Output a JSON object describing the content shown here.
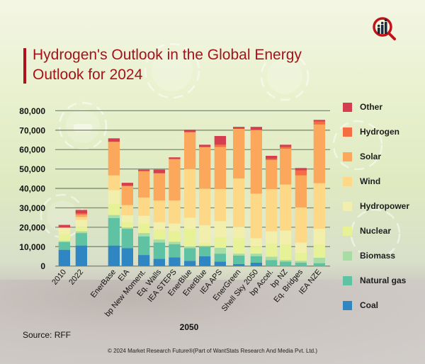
{
  "title": "Hydrogen's Outlook in the Global Energy Outlook for 2024",
  "source": "Source: RFF",
  "copyright": "© 2024 Market Research Future®(Part of WantStats Research And Media Pvt. Ltd.)",
  "logo_icon": "magnifier-chart-icon",
  "chart_data": {
    "type": "bar",
    "stacked": true,
    "title": "Hydrogen's Outlook in the Global Energy Outlook for 2024",
    "xlabel": "2050",
    "ylabel": "",
    "ylim": [
      0,
      80000
    ],
    "yticks": [
      0,
      10000,
      20000,
      30000,
      40000,
      50000,
      60000,
      70000,
      80000
    ],
    "ytick_labels": [
      "0",
      "10,000",
      "20,000",
      "30,000",
      "40,000",
      "50,000",
      "60,000",
      "70,000",
      "80,000"
    ],
    "grid": true,
    "legend_position": "right",
    "categories": [
      "2010",
      "2022",
      "EnerBase",
      "EIA",
      "bp New Moment.",
      "Eq. Walls",
      "IEA STEPS",
      "EnerBlue",
      "EnerBlue",
      "IEA APS",
      "EnerGreen",
      "Shell Sky 2050",
      "bp Accel.",
      "bp NZ",
      "Eq. Bridges",
      "IEA NZE"
    ],
    "category_group_gap_after": [
      1,
      9
    ],
    "series": [
      {
        "name": "Coal",
        "color": "#2f86c3",
        "values": [
          8400,
          10600,
          10600,
          9200,
          5700,
          3700,
          4500,
          2700,
          5100,
          2300,
          1100,
          1800,
          0,
          0,
          0,
          0
        ]
      },
      {
        "name": "Natural gas",
        "color": "#5fc2a2",
        "values": [
          4000,
          6400,
          14100,
          10000,
          9600,
          8400,
          6700,
          6500,
          4900,
          4100,
          4300,
          3300,
          3100,
          2300,
          1800,
          1500
        ]
      },
      {
        "name": "Biomass",
        "color": "#a7dca4",
        "values": [
          500,
          900,
          1600,
          600,
          1700,
          1600,
          1300,
          800,
          500,
          3000,
          1000,
          1300,
          1700,
          800,
          900,
          2800
        ]
      },
      {
        "name": "Nuclear",
        "color": "#e6f295",
        "values": [
          3500,
          2200,
          5700,
          2800,
          4900,
          4900,
          5400,
          9200,
          1400,
          5500,
          7900,
          3600,
          6700,
          8100,
          4000,
          6900
        ]
      },
      {
        "name": "Hydropower",
        "color": "#f2eeab",
        "values": [
          3400,
          3700,
          7100,
          3500,
          4000,
          4000,
          4000,
          5700,
          9100,
          8200,
          5900,
          4300,
          6400,
          7100,
          5400,
          8000
        ]
      },
      {
        "name": "Wind",
        "color": "#fdd887",
        "values": [
          0,
          1500,
          7600,
          5300,
          9400,
          11200,
          11900,
          25100,
          18900,
          16600,
          24900,
          23000,
          21700,
          23700,
          18100,
          23500
        ]
      },
      {
        "name": "Solar",
        "color": "#fca85c",
        "values": [
          0,
          1200,
          17300,
          9900,
          13600,
          14000,
          21300,
          19000,
          21400,
          21600,
          25600,
          32800,
          15000,
          18400,
          16500,
          30200
        ]
      },
      {
        "name": "Hydrogen",
        "color": "#f46d43",
        "values": [
          0,
          600,
          0,
          0,
          0,
          0,
          0,
          0,
          0,
          1200,
          0,
          0,
          600,
          900,
          2600,
          1600
        ]
      },
      {
        "name": "Other",
        "color": "#d53e4f",
        "values": [
          1400,
          1800,
          1800,
          1600,
          800,
          1900,
          900,
          1200,
          1200,
          4500,
          1000,
          1600,
          1600,
          1200,
          1200,
          800
        ]
      }
    ],
    "legend_order": [
      "Other",
      "Hydrogen",
      "Solar",
      "Wind",
      "Hydropower",
      "Nuclear",
      "Biomass",
      "Natural gas",
      "Coal"
    ]
  }
}
